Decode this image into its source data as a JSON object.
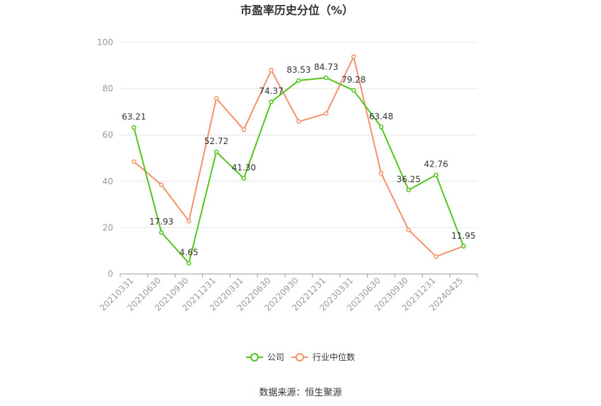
{
  "chart_data": {
    "type": "line",
    "title": "市盈率历史分位（%）",
    "categories": [
      "20210331",
      "20210630",
      "20210930",
      "20211231",
      "20220331",
      "20220630",
      "20220930",
      "20221231",
      "20230331",
      "20230630",
      "20230930",
      "20231231",
      "20240425"
    ],
    "ylim": [
      0,
      100
    ],
    "yticks": [
      0,
      20,
      40,
      60,
      80,
      100
    ],
    "grid": true,
    "legend_position": "bottom",
    "series": [
      {
        "name": "公司",
        "color": "#52c41a",
        "values": [
          63.21,
          17.93,
          4.65,
          52.72,
          41.3,
          74.37,
          83.53,
          84.73,
          79.28,
          63.48,
          36.25,
          42.76,
          11.95
        ],
        "labels": [
          "63.21",
          "17.93",
          "4.65",
          "52.72",
          "41.30",
          "74.37",
          "83.53",
          "84.73",
          "79.28",
          "63.48",
          "36.25",
          "42.76",
          "11.95"
        ]
      },
      {
        "name": "行业中位数",
        "color": "#f4916a",
        "values": [
          48.5,
          38.5,
          22.8,
          75.8,
          62.3,
          88.0,
          65.8,
          69.3,
          93.8,
          43.5,
          19.0,
          7.5,
          12.0
        ]
      }
    ]
  },
  "source": "数据来源：恒生聚源"
}
